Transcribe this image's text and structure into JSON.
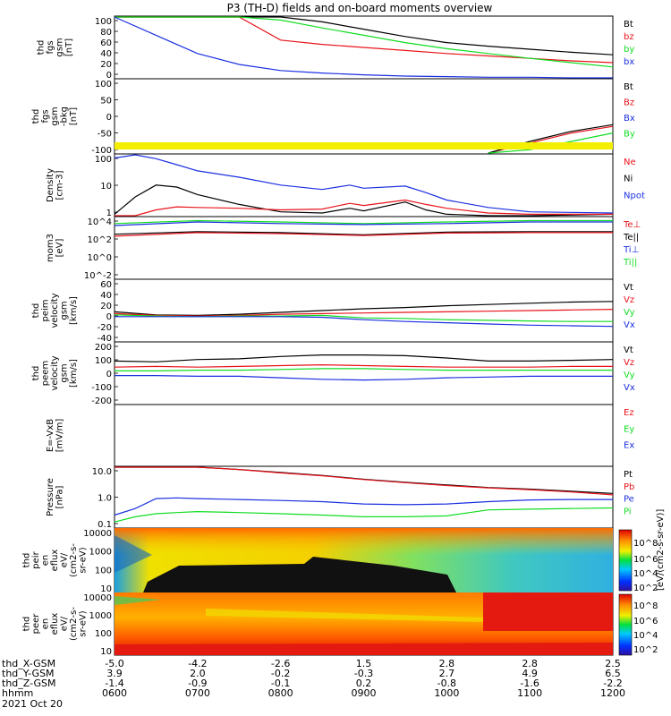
{
  "title": "P3 (TH-D) fields and on-board moments overview",
  "colors": {
    "black": "#000000",
    "red": "#e8141b",
    "green": "#11dd22",
    "blue": "#1a2fe0",
    "yellow": "#f4ef00"
  },
  "chart_data": [
    {
      "type": "line",
      "id": "fgs_gsm",
      "ylabel": [
        "thd",
        "fgs",
        "gsm",
        "[nT]"
      ],
      "ylim": [
        0,
        100
      ],
      "yticks": [
        "100",
        "80",
        "60",
        "40",
        "20",
        "0"
      ],
      "legend": [
        {
          "label": "Bt",
          "color": "black"
        },
        {
          "label": "bz",
          "color": "red"
        },
        {
          "label": "by",
          "color": "green"
        },
        {
          "label": "bx",
          "color": "blue"
        }
      ],
      "x": [
        600,
        630,
        700,
        730,
        800,
        830,
        900,
        930,
        1000,
        1030,
        1100,
        1130,
        1200
      ],
      "series": [
        {
          "name": "Bt",
          "color": "black",
          "values": [
            100,
            100,
            100,
            100,
            100,
            92,
            80,
            68,
            58,
            52,
            47,
            42,
            38
          ]
        },
        {
          "name": "bz",
          "color": "red",
          "values": [
            100,
            100,
            100,
            100,
            62,
            55,
            50,
            45,
            40,
            36,
            32,
            28,
            25
          ]
        },
        {
          "name": "by",
          "color": "green",
          "values": [
            100,
            100,
            100,
            100,
            95,
            82,
            70,
            58,
            48,
            40,
            32,
            25,
            18
          ]
        },
        {
          "name": "bx",
          "color": "blue",
          "values": [
            100,
            70,
            40,
            22,
            12,
            8,
            5,
            3,
            2,
            1,
            1,
            0,
            0
          ]
        }
      ]
    },
    {
      "type": "line",
      "id": "fgs_gsm_bg",
      "ylabel": [
        "thd",
        "fgs",
        "gsm",
        "-bkg",
        "[nT]"
      ],
      "ylim": [
        -120,
        100
      ],
      "yticks": [
        "100",
        "50",
        "0",
        "-50",
        "-100"
      ],
      "legend": [
        {
          "label": "Bt",
          "color": "black"
        },
        {
          "label": "Bz",
          "color": "red"
        },
        {
          "label": "Bx",
          "color": "blue"
        },
        {
          "label": "By",
          "color": "green"
        }
      ],
      "x": [
        1030,
        1100,
        1130,
        1200
      ],
      "series": [
        {
          "name": "Bz",
          "color": "red",
          "values": [
            -120,
            -90,
            -60,
            -40
          ]
        },
        {
          "name": "Bt",
          "color": "black",
          "values": [
            -120,
            -85,
            -55,
            -35
          ]
        },
        {
          "name": "By",
          "color": "green",
          "values": [
            -120,
            -110,
            -85,
            -60
          ]
        }
      ]
    },
    {
      "type": "line",
      "id": "density",
      "log": true,
      "ylabel": [
        "Density",
        "[cm-3]"
      ],
      "ylim": [
        0.7,
        200
      ],
      "yticks": [
        "100",
        "10",
        "1"
      ],
      "legend": [
        {
          "label": "Ne",
          "color": "red"
        },
        {
          "label": "Ni",
          "color": "black"
        },
        {
          "label": "Npot",
          "color": "blue"
        }
      ],
      "x": [
        600,
        615,
        630,
        645,
        700,
        730,
        800,
        830,
        850,
        900,
        930,
        945,
        1000,
        1030,
        1100,
        1200
      ],
      "series": [
        {
          "name": "Npot",
          "color": "blue",
          "values": [
            150,
            200,
            140,
            80,
            45,
            25,
            12,
            8,
            12,
            9,
            11,
            6,
            3,
            1.5,
            1,
            0.9
          ]
        },
        {
          "name": "Ni",
          "color": "black",
          "values": [
            0.8,
            4,
            12,
            10,
            5,
            2,
            1,
            0.9,
            1.4,
            1.1,
            2.5,
            1.2,
            0.8,
            0.7,
            0.7,
            0.8
          ]
        },
        {
          "name": "Ne",
          "color": "red",
          "values": [
            0.5,
            0.7,
            1.2,
            1.6,
            1.5,
            1.4,
            1.2,
            1.3,
            2.2,
            1.8,
            3.0,
            2.0,
            1.4,
            0.9,
            0.8,
            0.8
          ]
        }
      ]
    },
    {
      "type": "line",
      "id": "temps",
      "log": true,
      "ylabel": [
        "mom3",
        "[eV]"
      ],
      "ylim": [
        1,
        1000
      ],
      "yticks": [
        "10^4",
        "10^2",
        "10^0",
        "10^-2"
      ],
      "legend": [
        {
          "label": "Te⊥",
          "color": "red"
        },
        {
          "label": "Te||",
          "color": "black"
        },
        {
          "label": "Ti⊥",
          "color": "blue"
        },
        {
          "label": "Ti||",
          "color": "green"
        }
      ],
      "x": [
        600,
        700,
        800,
        900,
        1000,
        1100,
        1200
      ],
      "series": [
        {
          "name": "Ti||",
          "color": "green",
          "values": [
            500,
            700,
            600,
            500,
            600,
            700,
            700
          ]
        },
        {
          "name": "Ti⊥",
          "color": "blue",
          "values": [
            400,
            600,
            500,
            450,
            500,
            600,
            600
          ]
        },
        {
          "name": "Te||",
          "color": "black",
          "values": [
            150,
            200,
            180,
            140,
            190,
            200,
            200
          ]
        },
        {
          "name": "Te⊥",
          "color": "red",
          "values": [
            120,
            180,
            160,
            130,
            170,
            180,
            180
          ]
        }
      ]
    },
    {
      "type": "line",
      "id": "peim_vel",
      "ylabel": [
        "thd",
        "peim",
        "velocity",
        "gsm",
        "[km/s]"
      ],
      "ylim": [
        -40,
        60
      ],
      "yticks": [
        "60",
        "40",
        "20",
        "0",
        "-20",
        "-40"
      ],
      "legend": [
        {
          "label": "Vt",
          "color": "black"
        },
        {
          "label": "Vz",
          "color": "red"
        },
        {
          "label": "Vy",
          "color": "green"
        },
        {
          "label": "Vx",
          "color": "blue"
        }
      ],
      "x": [
        600,
        630,
        700,
        730,
        800,
        830,
        900,
        930,
        1000,
        1030,
        1100,
        1130,
        1200
      ],
      "series": [
        {
          "name": "Vt",
          "color": "black",
          "values": [
            8,
            3,
            2,
            4,
            7,
            10,
            13,
            15,
            18,
            20,
            22,
            24,
            25
          ]
        },
        {
          "name": "Vz",
          "color": "red",
          "values": [
            5,
            2,
            1,
            2,
            4,
            5,
            6,
            7,
            8,
            9,
            10,
            11,
            12
          ]
        },
        {
          "name": "Vy",
          "color": "green",
          "values": [
            3,
            1,
            0,
            1,
            1,
            2,
            -2,
            -3,
            -5,
            -6,
            -7,
            -8,
            -8
          ]
        },
        {
          "name": "Vx",
          "color": "blue",
          "values": [
            0,
            0,
            0,
            0,
            0,
            -1,
            -5,
            -8,
            -10,
            -12,
            -14,
            -15,
            -16
          ]
        }
      ]
    },
    {
      "type": "line",
      "id": "peem_vel",
      "ylabel": [
        "thd",
        "peem",
        "velocity",
        "gsm",
        "[km/s]"
      ],
      "ylim": [
        -200,
        200
      ],
      "yticks": [
        "200",
        "100",
        "0",
        "-100",
        "-200"
      ],
      "legend": [
        {
          "label": "Vt",
          "color": "black"
        },
        {
          "label": "Vz",
          "color": "red"
        },
        {
          "label": "Vy",
          "color": "green"
        },
        {
          "label": "Vx",
          "color": "blue"
        }
      ],
      "x": [
        600,
        630,
        700,
        730,
        800,
        830,
        900,
        930,
        1000,
        1030,
        1100,
        1130,
        1200
      ],
      "series": [
        {
          "name": "Vt",
          "color": "black",
          "values": [
            80,
            75,
            90,
            95,
            110,
            120,
            120,
            115,
            100,
            80,
            80,
            85,
            90
          ]
        },
        {
          "name": "Vz",
          "color": "red",
          "values": [
            40,
            45,
            40,
            45,
            50,
            55,
            50,
            45,
            40,
            40,
            40,
            45,
            45
          ]
        },
        {
          "name": "Vy",
          "color": "green",
          "values": [
            15,
            15,
            20,
            20,
            25,
            30,
            30,
            25,
            20,
            20,
            20,
            20,
            20
          ]
        },
        {
          "name": "Vx",
          "color": "blue",
          "values": [
            -15,
            -15,
            -20,
            -20,
            -30,
            -40,
            -45,
            -40,
            -30,
            -25,
            -20,
            -20,
            -20
          ]
        }
      ]
    },
    {
      "type": "line",
      "id": "efield",
      "ylabel": [
        "E=-VxB",
        "[mV/m]"
      ],
      "ylim": [
        0,
        1
      ],
      "yticks": [],
      "legend": [
        {
          "label": "Ez",
          "color": "red"
        },
        {
          "label": "Ey",
          "color": "green"
        },
        {
          "label": "Ex",
          "color": "blue"
        }
      ],
      "x": [],
      "series": []
    },
    {
      "type": "line",
      "id": "pressure",
      "log": true,
      "ylabel": [
        "Pressure",
        "[nPa]"
      ],
      "ylim": [
        0.01,
        30
      ],
      "yticks": [
        "10.0",
        "1.0",
        "0.1"
      ],
      "legend": [
        {
          "label": "Pt",
          "color": "black"
        },
        {
          "label": "Pb",
          "color": "red"
        },
        {
          "label": "Pe",
          "color": "blue"
        },
        {
          "label": "Pi",
          "color": "green"
        }
      ],
      "x": [
        600,
        615,
        630,
        645,
        700,
        730,
        800,
        830,
        900,
        930,
        1000,
        1030,
        1100,
        1130,
        1200
      ],
      "series": [
        {
          "name": "Pt",
          "color": "black",
          "values": [
            30,
            30,
            30,
            30,
            30,
            22,
            15,
            10,
            6,
            4,
            2.8,
            2.0,
            1.6,
            1.2,
            0.9
          ]
        },
        {
          "name": "Pb",
          "color": "red",
          "values": [
            30,
            30,
            30,
            30,
            30,
            22,
            14,
            9.5,
            5.8,
            3.8,
            2.6,
            1.9,
            1.5,
            1.1,
            0.75
          ]
        },
        {
          "name": "Pe",
          "color": "blue",
          "values": [
            0.05,
            0.12,
            0.45,
            0.5,
            0.45,
            0.4,
            0.35,
            0.3,
            0.22,
            0.2,
            0.22,
            0.3,
            0.38,
            0.4,
            0.4
          ]
        },
        {
          "name": "Pi",
          "color": "green",
          "values": [
            0.02,
            0.04,
            0.06,
            0.07,
            0.08,
            0.07,
            0.06,
            0.05,
            0.04,
            0.04,
            0.045,
            0.1,
            0.11,
            0.12,
            0.13
          ]
        }
      ]
    },
    {
      "type": "heatmap",
      "id": "peir_spec",
      "ylabel": [
        "thd",
        "peir",
        "en",
        "eflux",
        "eV/",
        "(cm2-s-",
        "sr-eV)"
      ],
      "yticks": [
        "10000",
        "1000",
        "100",
        "10"
      ]
    },
    {
      "type": "heatmap",
      "id": "peer_spec",
      "ylabel": [
        "thd",
        "peer",
        "en",
        "eflux",
        "eV/",
        "(cm2-s-",
        "sr-eV)"
      ],
      "yticks": [
        "10000",
        "1000",
        "100",
        "10"
      ]
    }
  ],
  "colorbars": [
    {
      "ticks": [
        "10^8",
        "10^6",
        "10^4",
        "10^2"
      ],
      "label": "[eV/(cm2-s-sr-eV)] (All Qs)"
    },
    {
      "ticks": [
        "10^8",
        "10^6",
        "10^4",
        "10^2"
      ],
      "label": "[eV/(cm2-s-sr-eV)]"
    }
  ],
  "xaxis": {
    "rows": [
      {
        "label": "thd_X-GSM",
        "values": [
          "-5.0",
          "-4.2",
          "-2.6",
          "1.5",
          "2.8",
          "2.8",
          "2.5"
        ]
      },
      {
        "label": "thd_Y-GSM",
        "values": [
          "3.9",
          "2.0",
          "-0.2",
          "-0.3",
          "2.7",
          "4.9",
          "6.5"
        ]
      },
      {
        "label": "thd_Z-GSM",
        "values": [
          "-1.4",
          "-0.9",
          "-0.1",
          "0.2",
          "-0.8",
          "-1.6",
          "-2.2"
        ]
      },
      {
        "label": "hhmm",
        "values": [
          "0600",
          "0700",
          "0800",
          "0900",
          "1000",
          "1100",
          "1200"
        ]
      }
    ],
    "date": "2021 Oct 20"
  }
}
